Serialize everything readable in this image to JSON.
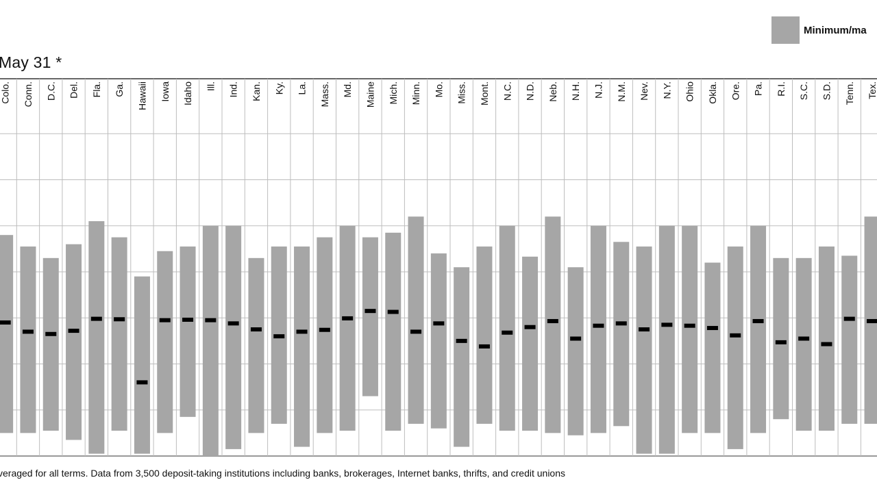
{
  "chart_data": {
    "type": "range-bar",
    "title": "May 31 *",
    "legend": {
      "placement": "top-right",
      "entries": [
        {
          "label": "Minimum/ma",
          "color": "#a6a6a6"
        }
      ]
    },
    "footnote": "veraged for all terms. Data from 3,500 deposit-taking institutions including banks, brokerages, Internet banks, thrifts, and credit unions",
    "colors": {
      "bar": "#a6a6a6",
      "marker": "#000000",
      "grid": "#bdbdbd",
      "axis": "#333333"
    },
    "y_range": [
      0,
      8
    ],
    "grid": true,
    "categories": [
      "Colo.",
      "Conn.",
      "D.C.",
      "Del.",
      "Fla.",
      "Ga.",
      "Hawaii",
      "Iowa",
      "Idaho",
      "Ill.",
      "Ind.",
      "Kan.",
      "Ky.",
      "La.",
      "Mass.",
      "Md.",
      "Maine",
      "Mich.",
      "Minn.",
      "Mo.",
      "Miss.",
      "Mont.",
      "N.C.",
      "N.D.",
      "Neb.",
      "N.H.",
      "N.J.",
      "N.M.",
      "Nev.",
      "N.Y.",
      "Ohio",
      "Okla.",
      "Ore.",
      "Pa.",
      "R.I.",
      "S.C.",
      "S.D.",
      "Tenn.",
      "Tex."
    ],
    "series": [
      {
        "role": "range",
        "min": [
          0.5,
          0.5,
          0.55,
          0.35,
          0.05,
          0.55,
          0.05,
          0.5,
          0.85,
          0.0,
          0.15,
          0.5,
          0.7,
          0.2,
          0.5,
          0.55,
          1.3,
          0.55,
          0.7,
          0.6,
          0.2,
          0.7,
          0.55,
          0.55,
          0.5,
          0.45,
          0.5,
          0.65,
          0.05,
          0.05,
          0.5,
          0.5,
          0.15,
          0.5,
          0.8,
          0.55,
          0.55,
          0.7,
          0.7
        ],
        "max": [
          4.8,
          4.55,
          4.3,
          4.6,
          5.1,
          4.75,
          3.9,
          4.45,
          4.55,
          5.0,
          5.0,
          4.3,
          4.55,
          4.55,
          4.75,
          5.0,
          4.75,
          4.85,
          5.2,
          4.4,
          4.1,
          4.55,
          5.0,
          4.33,
          5.2,
          4.1,
          5.0,
          4.65,
          4.55,
          5.0,
          5.0,
          4.2,
          4.55,
          5.0,
          4.3,
          4.3,
          4.55,
          4.35,
          5.2
        ]
      },
      {
        "role": "marker",
        "values": [
          2.9,
          2.7,
          2.65,
          2.72,
          2.98,
          2.97,
          1.6,
          2.95,
          2.96,
          2.95,
          2.88,
          2.75,
          2.6,
          2.7,
          2.74,
          2.99,
          3.15,
          3.13,
          2.7,
          2.88,
          2.5,
          2.38,
          2.68,
          2.8,
          2.93,
          2.55,
          2.83,
          2.88,
          2.75,
          2.85,
          2.83,
          2.78,
          2.62,
          2.93,
          2.47,
          2.55,
          2.43,
          2.98,
          2.93
        ]
      }
    ]
  }
}
